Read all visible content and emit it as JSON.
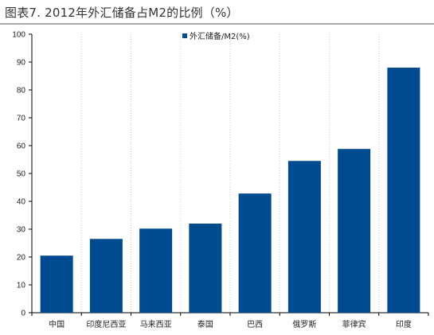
{
  "figure": {
    "title": "图表7.  2012年外汇储备占M2的比例（%）"
  },
  "chart_data": {
    "type": "bar",
    "categories": [
      "中国",
      "印度尼西亚",
      "马来西亚",
      "泰国",
      "巴西",
      "俄罗斯",
      "菲律宾",
      "印度"
    ],
    "series": [
      {
        "name": "外汇储备/M2(%)",
        "values": [
          20.5,
          26.5,
          30.2,
          32.0,
          42.8,
          54.5,
          58.8,
          88.0
        ],
        "color": "#004a8f"
      }
    ],
    "xlabel": "",
    "ylabel": "",
    "ylim": [
      0,
      100
    ],
    "yticks": [
      0,
      10,
      20,
      30,
      40,
      50,
      60,
      70,
      80,
      90,
      100
    ],
    "grid": "vertical-dotted",
    "legend": "top-center"
  }
}
